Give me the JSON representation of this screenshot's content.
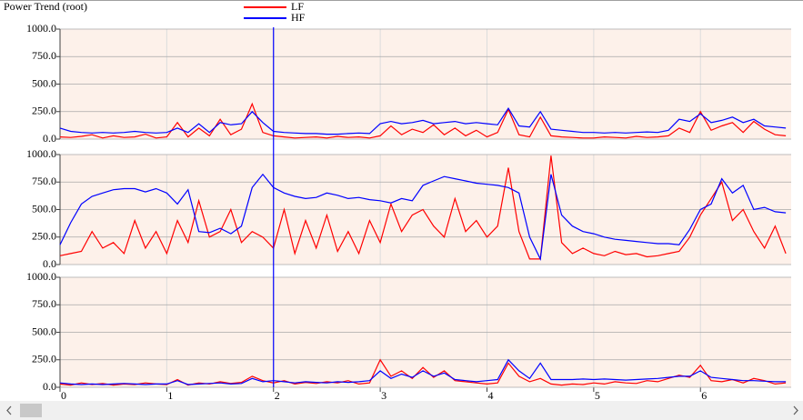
{
  "chart_data": [
    {
      "type": "line",
      "title": "Power Trend (root)",
      "cursor_x": 2,
      "grid": true,
      "x": [
        0,
        0.1,
        0.2,
        0.3,
        0.4,
        0.5,
        0.6,
        0.7,
        0.8,
        0.9,
        1,
        1.1,
        1.2,
        1.3,
        1.4,
        1.5,
        1.6,
        1.7,
        1.8,
        1.9,
        2,
        2.1,
        2.2,
        2.3,
        2.4,
        2.5,
        2.6,
        2.7,
        2.8,
        2.9,
        3,
        3.1,
        3.2,
        3.3,
        3.4,
        3.5,
        3.6,
        3.7,
        3.8,
        3.9,
        4,
        4.1,
        4.2,
        4.3,
        4.4,
        4.5,
        4.6,
        4.7,
        4.8,
        4.9,
        5,
        5.1,
        5.2,
        5.3,
        5.4,
        5.5,
        5.6,
        5.7,
        5.8,
        5.9,
        6,
        6.1,
        6.2,
        6.3,
        6.4,
        6.5,
        6.6,
        6.7,
        6.8
      ],
      "xlim": [
        0,
        6.85
      ],
      "xticks": [
        0,
        1,
        2,
        3,
        4,
        5,
        6
      ],
      "ylim": [
        0,
        1000
      ],
      "yticks": [
        {
          "value": 0,
          "label": "0.0"
        },
        {
          "value": 250,
          "label": "250.0"
        },
        {
          "value": 500,
          "label": "500.0"
        },
        {
          "value": 750,
          "label": "750.0"
        },
        {
          "value": 1000,
          "label": "1000.0"
        }
      ],
      "series": [
        {
          "name": "LF",
          "color": "#ff0000",
          "values": [
            20,
            15,
            25,
            40,
            10,
            30,
            15,
            20,
            45,
            10,
            20,
            150,
            20,
            100,
            30,
            180,
            40,
            90,
            320,
            60,
            30,
            20,
            10,
            15,
            20,
            10,
            25,
            15,
            20,
            10,
            30,
            120,
            40,
            90,
            60,
            130,
            40,
            100,
            30,
            80,
            20,
            60,
            270,
            40,
            20,
            200,
            30,
            20,
            15,
            10,
            10,
            20,
            15,
            10,
            25,
            15,
            20,
            30,
            100,
            60,
            250,
            80,
            120,
            150,
            60,
            160,
            90,
            40,
            30
          ]
        },
        {
          "name": "HF",
          "color": "#0000ff",
          "values": [
            100,
            70,
            60,
            55,
            60,
            55,
            60,
            70,
            60,
            55,
            60,
            100,
            60,
            140,
            60,
            150,
            130,
            140,
            250,
            150,
            70,
            60,
            55,
            50,
            50,
            45,
            45,
            50,
            55,
            50,
            140,
            160,
            140,
            150,
            170,
            140,
            150,
            160,
            140,
            150,
            140,
            130,
            280,
            120,
            110,
            250,
            90,
            80,
            70,
            60,
            60,
            55,
            60,
            55,
            60,
            65,
            60,
            80,
            180,
            160,
            230,
            150,
            170,
            200,
            150,
            180,
            120,
            110,
            100
          ]
        }
      ]
    },
    {
      "type": "line",
      "grid": true,
      "x": [
        0,
        0.1,
        0.2,
        0.3,
        0.4,
        0.5,
        0.6,
        0.7,
        0.8,
        0.9,
        1,
        1.1,
        1.2,
        1.3,
        1.4,
        1.5,
        1.6,
        1.7,
        1.8,
        1.9,
        2,
        2.1,
        2.2,
        2.3,
        2.4,
        2.5,
        2.6,
        2.7,
        2.8,
        2.9,
        3,
        3.1,
        3.2,
        3.3,
        3.4,
        3.5,
        3.6,
        3.7,
        3.8,
        3.9,
        4,
        4.1,
        4.2,
        4.3,
        4.4,
        4.5,
        4.6,
        4.7,
        4.8,
        4.9,
        5,
        5.1,
        5.2,
        5.3,
        5.4,
        5.5,
        5.6,
        5.7,
        5.8,
        5.9,
        6,
        6.1,
        6.2,
        6.3,
        6.4,
        6.5,
        6.6,
        6.7,
        6.8
      ],
      "xlim": [
        0,
        6.85
      ],
      "xticks": [
        0,
        1,
        2,
        3,
        4,
        5,
        6
      ],
      "ylim": [
        0,
        1000
      ],
      "yticks": [
        {
          "value": 0,
          "label": "0.0"
        },
        {
          "value": 250,
          "label": "250.0"
        },
        {
          "value": 500,
          "label": "500.0"
        },
        {
          "value": 750,
          "label": "750.0"
        },
        {
          "value": 1000,
          "label": "1000.0"
        }
      ],
      "series": [
        {
          "color": "#ff0000",
          "values": [
            80,
            100,
            120,
            300,
            150,
            200,
            100,
            400,
            150,
            300,
            100,
            400,
            200,
            580,
            250,
            300,
            500,
            200,
            300,
            250,
            150,
            500,
            100,
            400,
            150,
            450,
            120,
            300,
            100,
            400,
            200,
            550,
            300,
            450,
            500,
            350,
            250,
            600,
            300,
            400,
            250,
            350,
            880,
            300,
            50,
            50,
            990,
            200,
            100,
            150,
            100,
            80,
            120,
            90,
            100,
            70,
            80,
            100,
            120,
            250,
            450,
            600,
            750,
            400,
            500,
            300,
            150,
            350,
            100
          ]
        },
        {
          "color": "#0000ff",
          "values": [
            180,
            380,
            550,
            620,
            650,
            680,
            690,
            690,
            660,
            690,
            650,
            550,
            680,
            300,
            290,
            330,
            280,
            350,
            700,
            820,
            700,
            650,
            620,
            600,
            610,
            650,
            630,
            600,
            610,
            590,
            580,
            560,
            600,
            580,
            720,
            760,
            800,
            780,
            760,
            740,
            730,
            720,
            700,
            650,
            250,
            50,
            820,
            450,
            350,
            300,
            280,
            250,
            230,
            220,
            210,
            200,
            190,
            190,
            180,
            320,
            500,
            550,
            780,
            650,
            720,
            500,
            520,
            480,
            470
          ]
        }
      ]
    },
    {
      "type": "line",
      "grid": true,
      "x": [
        0,
        0.1,
        0.2,
        0.3,
        0.4,
        0.5,
        0.6,
        0.7,
        0.8,
        0.9,
        1,
        1.1,
        1.2,
        1.3,
        1.4,
        1.5,
        1.6,
        1.7,
        1.8,
        1.9,
        2,
        2.1,
        2.2,
        2.3,
        2.4,
        2.5,
        2.6,
        2.7,
        2.8,
        2.9,
        3,
        3.1,
        3.2,
        3.3,
        3.4,
        3.5,
        3.6,
        3.7,
        3.8,
        3.9,
        4,
        4.1,
        4.2,
        4.3,
        4.4,
        4.5,
        4.6,
        4.7,
        4.8,
        4.9,
        5,
        5.1,
        5.2,
        5.3,
        5.4,
        5.5,
        5.6,
        5.7,
        5.8,
        5.9,
        6,
        6.1,
        6.2,
        6.3,
        6.4,
        6.5,
        6.6,
        6.7,
        6.8
      ],
      "xlim": [
        0,
        6.85
      ],
      "xticks": [
        0,
        1,
        2,
        3,
        4,
        5,
        6
      ],
      "ylim": [
        0,
        1000
      ],
      "yticks": [
        {
          "value": 0,
          "label": "0.0"
        },
        {
          "value": 250,
          "label": "250.0"
        },
        {
          "value": 500,
          "label": "500.0"
        },
        {
          "value": 750,
          "label": "750.0"
        },
        {
          "value": 1000,
          "label": "1000.0"
        }
      ],
      "series": [
        {
          "color": "#ff0000",
          "values": [
            30,
            20,
            40,
            25,
            35,
            20,
            30,
            25,
            40,
            30,
            25,
            70,
            20,
            40,
            30,
            50,
            35,
            45,
            100,
            60,
            40,
            60,
            30,
            45,
            35,
            50,
            40,
            60,
            30,
            40,
            250,
            100,
            150,
            80,
            180,
            90,
            150,
            60,
            50,
            40,
            30,
            40,
            220,
            100,
            50,
            80,
            30,
            20,
            30,
            25,
            40,
            30,
            50,
            40,
            35,
            60,
            50,
            80,
            110,
            90,
            200,
            60,
            50,
            70,
            40,
            80,
            60,
            30,
            40
          ]
        },
        {
          "color": "#0000ff",
          "values": [
            40,
            30,
            25,
            30,
            25,
            30,
            35,
            30,
            25,
            30,
            30,
            60,
            25,
            30,
            35,
            40,
            30,
            35,
            80,
            50,
            60,
            50,
            40,
            50,
            45,
            40,
            50,
            45,
            50,
            60,
            150,
            80,
            120,
            90,
            150,
            100,
            130,
            70,
            60,
            50,
            60,
            70,
            250,
            150,
            80,
            220,
            70,
            70,
            70,
            75,
            70,
            75,
            70,
            65,
            70,
            75,
            80,
            90,
            100,
            100,
            150,
            90,
            80,
            70,
            60,
            60,
            55,
            50,
            50
          ]
        }
      ]
    }
  ]
}
